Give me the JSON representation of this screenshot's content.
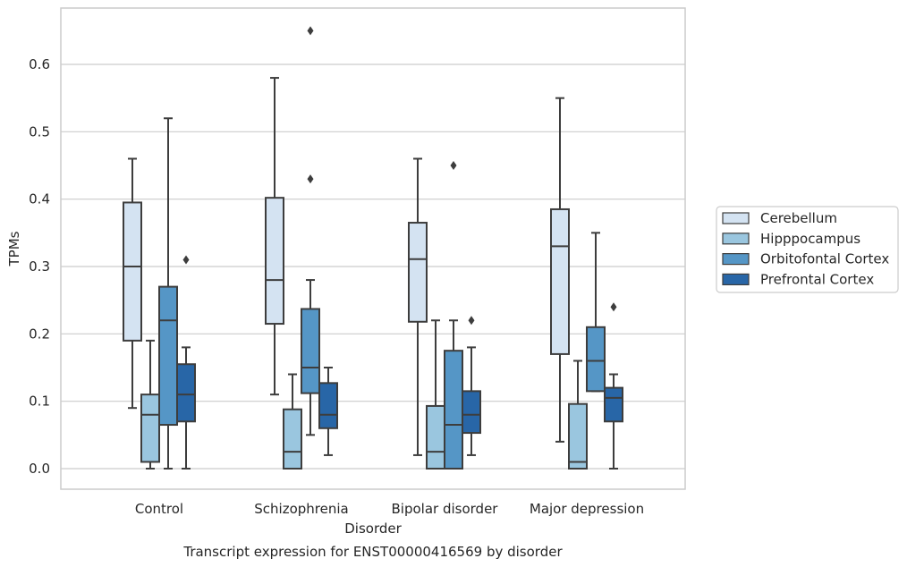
{
  "chart_data": {
    "type": "box",
    "title": "Transcript expression for ENST00000416569 by disorder",
    "xlabel": "Disorder",
    "ylabel": "TPMs",
    "ylim": [
      -0.032,
      0.683
    ],
    "yticks": [
      "0.0",
      "0.1",
      "0.2",
      "0.3",
      "0.4",
      "0.5",
      "0.6"
    ],
    "grid": true,
    "legend_position": "right",
    "categories": [
      "Control",
      "Schizophrenia",
      "Bipolar disorder",
      "Major depression"
    ],
    "series": [
      {
        "name": "Cerebellum",
        "color": "#d4e3f2",
        "boxes": [
          {
            "whisker_low": 0.09,
            "q1": 0.19,
            "median": 0.3,
            "q3": 0.395,
            "whisker_high": 0.46,
            "outliers": []
          },
          {
            "whisker_low": 0.11,
            "q1": 0.215,
            "median": 0.28,
            "q3": 0.402,
            "whisker_high": 0.58,
            "outliers": []
          },
          {
            "whisker_low": 0.02,
            "q1": 0.218,
            "median": 0.311,
            "q3": 0.365,
            "whisker_high": 0.46,
            "outliers": []
          },
          {
            "whisker_low": 0.04,
            "q1": 0.17,
            "median": 0.33,
            "q3": 0.385,
            "whisker_high": 0.55,
            "outliers": []
          }
        ]
      },
      {
        "name": "Hipppocampus",
        "color": "#9ac6df",
        "boxes": [
          {
            "whisker_low": 0.0,
            "q1": 0.01,
            "median": 0.08,
            "q3": 0.11,
            "whisker_high": 0.19,
            "outliers": []
          },
          {
            "whisker_low": 0.0,
            "q1": 0.0,
            "median": 0.025,
            "q3": 0.088,
            "whisker_high": 0.14,
            "outliers": []
          },
          {
            "whisker_low": 0.0,
            "q1": 0.0,
            "median": 0.025,
            "q3": 0.093,
            "whisker_high": 0.22,
            "outliers": []
          },
          {
            "whisker_low": 0.0,
            "q1": 0.0,
            "median": 0.01,
            "q3": 0.096,
            "whisker_high": 0.16,
            "outliers": []
          }
        ]
      },
      {
        "name": "Orbitofontal Cortex",
        "color": "#5596c6",
        "boxes": [
          {
            "whisker_low": 0.0,
            "q1": 0.065,
            "median": 0.22,
            "q3": 0.27,
            "whisker_high": 0.52,
            "outliers": []
          },
          {
            "whisker_low": 0.05,
            "q1": 0.112,
            "median": 0.15,
            "q3": 0.237,
            "whisker_high": 0.28,
            "outliers": [
              0.43,
              0.65
            ]
          },
          {
            "whisker_low": 0.0,
            "q1": 0.0,
            "median": 0.065,
            "q3": 0.175,
            "whisker_high": 0.22,
            "outliers": [
              0.45
            ]
          },
          {
            "whisker_low": 0.115,
            "q1": 0.115,
            "median": 0.16,
            "q3": 0.21,
            "whisker_high": 0.35,
            "outliers": []
          }
        ]
      },
      {
        "name": "Prefrontal Cortex",
        "color": "#2866a7",
        "boxes": [
          {
            "whisker_low": 0.0,
            "q1": 0.07,
            "median": 0.11,
            "q3": 0.155,
            "whisker_high": 0.18,
            "outliers": [
              0.31
            ]
          },
          {
            "whisker_low": 0.02,
            "q1": 0.06,
            "median": 0.08,
            "q3": 0.127,
            "whisker_high": 0.15,
            "outliers": []
          },
          {
            "whisker_low": 0.02,
            "q1": 0.053,
            "median": 0.08,
            "q3": 0.115,
            "whisker_high": 0.18,
            "outliers": [
              0.22
            ]
          },
          {
            "whisker_low": 0.0,
            "q1": 0.07,
            "median": 0.105,
            "q3": 0.12,
            "whisker_high": 0.14,
            "outliers": [
              0.24
            ]
          }
        ]
      }
    ]
  }
}
